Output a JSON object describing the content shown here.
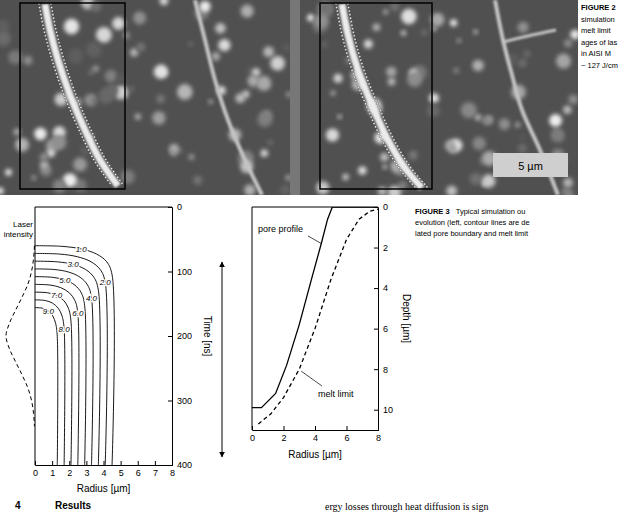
{
  "figure2": {
    "caption_lines": [
      "FIGURE 2",
      "simulation",
      "melt limit",
      "ages of las",
      "in AISI M",
      "~ 127 J/cm"
    ],
    "scale_bar": "5 µm"
  },
  "figure3": {
    "caption_lines": [
      "FIGURE 3   Typical simulation ou",
      "evolution (left, contour lines are de",
      "lated pore boundary and melt limit"
    ]
  },
  "chart_data": [
    {
      "type": "contour",
      "x_label": "Radius [µm]",
      "y_label": "Time [ns]",
      "xlim": [
        0,
        8
      ],
      "xticks": [
        0,
        1,
        2,
        3,
        4,
        5,
        6,
        7,
        8
      ],
      "ylim": [
        0,
        400
      ],
      "yticks": [
        0,
        100,
        200,
        300,
        400
      ],
      "color": "#000000",
      "contours": [
        {
          "label": "1.0",
          "radius": [
            0,
            1.58,
            2.7,
            3.6,
            4.19,
            4.5,
            4.5
          ],
          "time": [
            60,
            61,
            65,
            73,
            85,
            105,
            400
          ]
        },
        {
          "label": "2.0",
          "radius": [
            0,
            1.44,
            2.46,
            3.28,
            3.81,
            4.1,
            4.1
          ],
          "time": [
            72,
            73,
            77,
            85,
            97,
            117,
            400
          ]
        },
        {
          "label": "3.0",
          "radius": [
            0,
            1.3,
            2.22,
            2.96,
            3.44,
            3.7,
            3.7
          ],
          "time": [
            84,
            85,
            89,
            97,
            109,
            129,
            400
          ]
        },
        {
          "label": "4.0",
          "radius": [
            0,
            1.16,
            1.98,
            2.64,
            3.07,
            3.3,
            3.3
          ],
          "time": [
            96,
            97,
            101,
            109,
            121,
            141,
            400
          ]
        },
        {
          "label": "5.0",
          "radius": [
            0,
            1.02,
            1.74,
            2.32,
            2.7,
            2.9,
            2.9
          ],
          "time": [
            108,
            109,
            113,
            121,
            133,
            153,
            400
          ]
        },
        {
          "label": "6.0",
          "radius": [
            0,
            0.88,
            1.5,
            2.0,
            2.33,
            2.5,
            2.5
          ],
          "time": [
            120,
            121,
            125,
            133,
            145,
            165,
            400
          ]
        },
        {
          "label": "7.0",
          "radius": [
            0,
            0.74,
            1.26,
            1.68,
            1.95,
            2.1,
            2.1
          ],
          "time": [
            132,
            133,
            137,
            145,
            157,
            177,
            400
          ]
        },
        {
          "label": "8.0",
          "radius": [
            0,
            0.6,
            1.02,
            1.36,
            1.58,
            1.7,
            1.7
          ],
          "time": [
            144,
            145,
            149,
            157,
            169,
            189,
            400
          ]
        },
        {
          "label": "9.0",
          "radius": [
            0,
            0.46,
            0.78,
            1.04,
            1.21,
            1.3,
            1.3
          ],
          "time": [
            156,
            157,
            161,
            169,
            181,
            201,
            400
          ]
        }
      ],
      "laser_intensity": {
        "name": "Laser intensity",
        "line_style": "dashed",
        "lim": [
          0,
          1
        ],
        "time": [
          60,
          80,
          100,
          120,
          140,
          160,
          180,
          200,
          220,
          240,
          260,
          280,
          300,
          320,
          340
        ],
        "values": [
          0.02,
          0.05,
          0.12,
          0.25,
          0.45,
          0.67,
          0.88,
          1.0,
          0.88,
          0.67,
          0.45,
          0.25,
          0.12,
          0.05,
          0.02
        ]
      }
    },
    {
      "type": "line",
      "x_label": "Radius [µm]",
      "y_label": "Depth [µm]",
      "xlim": [
        0,
        8
      ],
      "xticks": [
        0,
        2,
        4,
        6,
        8
      ],
      "ylim": [
        0,
        11
      ],
      "yticks": [
        0,
        2,
        4,
        6,
        8,
        10
      ],
      "series": [
        {
          "name": "pore profile",
          "color": "#000000",
          "line_style": "solid",
          "x": [
            0,
            0.6,
            1.5,
            2.2,
            3.0,
            3.8,
            4.4,
            4.8,
            5.1,
            8
          ],
          "values": [
            9.9,
            9.9,
            9.2,
            7.8,
            5.8,
            3.5,
            1.8,
            0.6,
            0,
            0
          ]
        },
        {
          "name": "melt limit",
          "color": "#000000",
          "line_style": "dashed",
          "x": [
            0.4,
            1.2,
            2,
            3,
            4,
            5,
            6,
            6.8,
            7.5,
            8
          ],
          "values": [
            10.7,
            10.2,
            9.4,
            8.0,
            6.0,
            3.6,
            1.6,
            0.6,
            0.2,
            0.1
          ]
        }
      ]
    }
  ],
  "section": {
    "number": "4",
    "title": "Results"
  },
  "body_text": "ergy losses through heat diffusion is sign"
}
